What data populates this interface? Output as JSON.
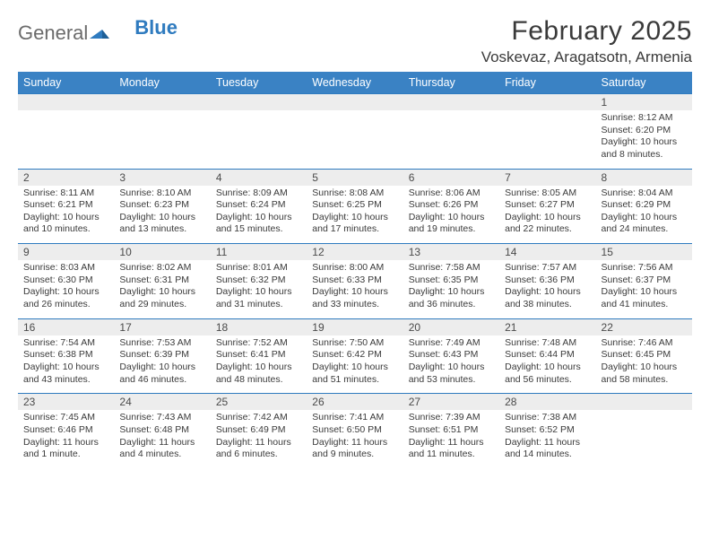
{
  "logo": {
    "text1": "General",
    "text2": "Blue"
  },
  "header": {
    "month_title": "February 2025",
    "location": "Voskevaz, Aragatsotn, Armenia"
  },
  "colors": {
    "header_bar": "#3a82c4",
    "daynum_bg": "#ededed",
    "rule": "#2f7bbf",
    "text": "#3a3a3a",
    "logo_gray": "#6b6b6b",
    "logo_blue": "#2f7bbf"
  },
  "typography": {
    "month_title_fontsize": 30,
    "location_fontsize": 17,
    "weekday_fontsize": 12.5,
    "daynum_fontsize": 12,
    "detail_fontsize": 10.5
  },
  "weekdays": [
    "Sunday",
    "Monday",
    "Tuesday",
    "Wednesday",
    "Thursday",
    "Friday",
    "Saturday"
  ],
  "weeks": [
    {
      "nums": [
        "",
        "",
        "",
        "",
        "",
        "",
        "1"
      ],
      "details": [
        {},
        {},
        {},
        {},
        {},
        {},
        {
          "sunrise": "Sunrise: 8:12 AM",
          "sunset": "Sunset: 6:20 PM",
          "day1": "Daylight: 10 hours",
          "day2": "and 8 minutes."
        }
      ]
    },
    {
      "nums": [
        "2",
        "3",
        "4",
        "5",
        "6",
        "7",
        "8"
      ],
      "details": [
        {
          "sunrise": "Sunrise: 8:11 AM",
          "sunset": "Sunset: 6:21 PM",
          "day1": "Daylight: 10 hours",
          "day2": "and 10 minutes."
        },
        {
          "sunrise": "Sunrise: 8:10 AM",
          "sunset": "Sunset: 6:23 PM",
          "day1": "Daylight: 10 hours",
          "day2": "and 13 minutes."
        },
        {
          "sunrise": "Sunrise: 8:09 AM",
          "sunset": "Sunset: 6:24 PM",
          "day1": "Daylight: 10 hours",
          "day2": "and 15 minutes."
        },
        {
          "sunrise": "Sunrise: 8:08 AM",
          "sunset": "Sunset: 6:25 PM",
          "day1": "Daylight: 10 hours",
          "day2": "and 17 minutes."
        },
        {
          "sunrise": "Sunrise: 8:06 AM",
          "sunset": "Sunset: 6:26 PM",
          "day1": "Daylight: 10 hours",
          "day2": "and 19 minutes."
        },
        {
          "sunrise": "Sunrise: 8:05 AM",
          "sunset": "Sunset: 6:27 PM",
          "day1": "Daylight: 10 hours",
          "day2": "and 22 minutes."
        },
        {
          "sunrise": "Sunrise: 8:04 AM",
          "sunset": "Sunset: 6:29 PM",
          "day1": "Daylight: 10 hours",
          "day2": "and 24 minutes."
        }
      ]
    },
    {
      "nums": [
        "9",
        "10",
        "11",
        "12",
        "13",
        "14",
        "15"
      ],
      "details": [
        {
          "sunrise": "Sunrise: 8:03 AM",
          "sunset": "Sunset: 6:30 PM",
          "day1": "Daylight: 10 hours",
          "day2": "and 26 minutes."
        },
        {
          "sunrise": "Sunrise: 8:02 AM",
          "sunset": "Sunset: 6:31 PM",
          "day1": "Daylight: 10 hours",
          "day2": "and 29 minutes."
        },
        {
          "sunrise": "Sunrise: 8:01 AM",
          "sunset": "Sunset: 6:32 PM",
          "day1": "Daylight: 10 hours",
          "day2": "and 31 minutes."
        },
        {
          "sunrise": "Sunrise: 8:00 AM",
          "sunset": "Sunset: 6:33 PM",
          "day1": "Daylight: 10 hours",
          "day2": "and 33 minutes."
        },
        {
          "sunrise": "Sunrise: 7:58 AM",
          "sunset": "Sunset: 6:35 PM",
          "day1": "Daylight: 10 hours",
          "day2": "and 36 minutes."
        },
        {
          "sunrise": "Sunrise: 7:57 AM",
          "sunset": "Sunset: 6:36 PM",
          "day1": "Daylight: 10 hours",
          "day2": "and 38 minutes."
        },
        {
          "sunrise": "Sunrise: 7:56 AM",
          "sunset": "Sunset: 6:37 PM",
          "day1": "Daylight: 10 hours",
          "day2": "and 41 minutes."
        }
      ]
    },
    {
      "nums": [
        "16",
        "17",
        "18",
        "19",
        "20",
        "21",
        "22"
      ],
      "details": [
        {
          "sunrise": "Sunrise: 7:54 AM",
          "sunset": "Sunset: 6:38 PM",
          "day1": "Daylight: 10 hours",
          "day2": "and 43 minutes."
        },
        {
          "sunrise": "Sunrise: 7:53 AM",
          "sunset": "Sunset: 6:39 PM",
          "day1": "Daylight: 10 hours",
          "day2": "and 46 minutes."
        },
        {
          "sunrise": "Sunrise: 7:52 AM",
          "sunset": "Sunset: 6:41 PM",
          "day1": "Daylight: 10 hours",
          "day2": "and 48 minutes."
        },
        {
          "sunrise": "Sunrise: 7:50 AM",
          "sunset": "Sunset: 6:42 PM",
          "day1": "Daylight: 10 hours",
          "day2": "and 51 minutes."
        },
        {
          "sunrise": "Sunrise: 7:49 AM",
          "sunset": "Sunset: 6:43 PM",
          "day1": "Daylight: 10 hours",
          "day2": "and 53 minutes."
        },
        {
          "sunrise": "Sunrise: 7:48 AM",
          "sunset": "Sunset: 6:44 PM",
          "day1": "Daylight: 10 hours",
          "day2": "and 56 minutes."
        },
        {
          "sunrise": "Sunrise: 7:46 AM",
          "sunset": "Sunset: 6:45 PM",
          "day1": "Daylight: 10 hours",
          "day2": "and 58 minutes."
        }
      ]
    },
    {
      "nums": [
        "23",
        "24",
        "25",
        "26",
        "27",
        "28",
        ""
      ],
      "details": [
        {
          "sunrise": "Sunrise: 7:45 AM",
          "sunset": "Sunset: 6:46 PM",
          "day1": "Daylight: 11 hours",
          "day2": "and 1 minute."
        },
        {
          "sunrise": "Sunrise: 7:43 AM",
          "sunset": "Sunset: 6:48 PM",
          "day1": "Daylight: 11 hours",
          "day2": "and 4 minutes."
        },
        {
          "sunrise": "Sunrise: 7:42 AM",
          "sunset": "Sunset: 6:49 PM",
          "day1": "Daylight: 11 hours",
          "day2": "and 6 minutes."
        },
        {
          "sunrise": "Sunrise: 7:41 AM",
          "sunset": "Sunset: 6:50 PM",
          "day1": "Daylight: 11 hours",
          "day2": "and 9 minutes."
        },
        {
          "sunrise": "Sunrise: 7:39 AM",
          "sunset": "Sunset: 6:51 PM",
          "day1": "Daylight: 11 hours",
          "day2": "and 11 minutes."
        },
        {
          "sunrise": "Sunrise: 7:38 AM",
          "sunset": "Sunset: 6:52 PM",
          "day1": "Daylight: 11 hours",
          "day2": "and 14 minutes."
        },
        {}
      ]
    }
  ]
}
